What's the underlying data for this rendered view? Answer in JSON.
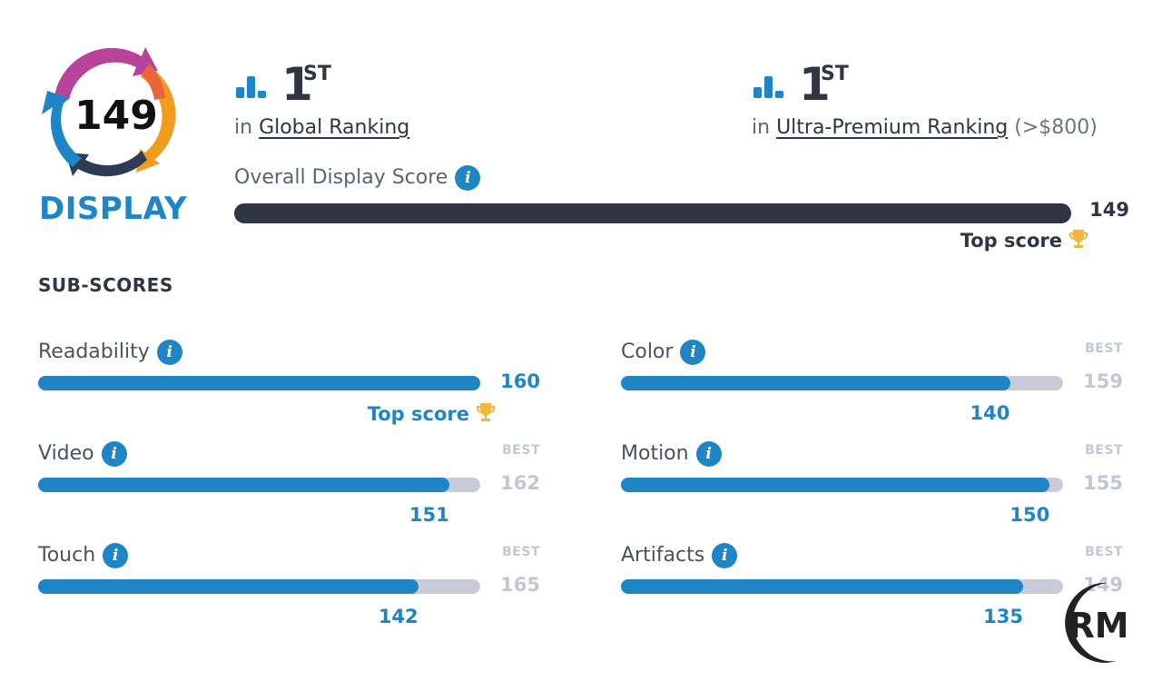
{
  "badge": {
    "score": "149",
    "label": "DISPLAY"
  },
  "rankings": [
    {
      "rank": "1",
      "suffix": "ST",
      "prefix": "in",
      "name": "Global Ranking",
      "extra": ""
    },
    {
      "rank": "1",
      "suffix": "ST",
      "prefix": "in",
      "name": "Ultra-Premium Ranking",
      "extra": "(>$800)"
    }
  ],
  "overall": {
    "label": "Overall Display Score",
    "value": "149",
    "max": 149,
    "top_score_label": "Top score"
  },
  "subscores_title": "SUB-SCORES",
  "subscores": [
    {
      "label": "Readability",
      "value": "160",
      "fill_pct": 100,
      "is_top": true,
      "top_score_label": "Top score",
      "best_label": "",
      "best": ""
    },
    {
      "label": "Color",
      "value": "140",
      "fill_pct": 88,
      "is_top": false,
      "best_label": "BEST",
      "best": "159"
    },
    {
      "label": "Video",
      "value": "151",
      "fill_pct": 93,
      "is_top": false,
      "best_label": "BEST",
      "best": "162"
    },
    {
      "label": "Motion",
      "value": "150",
      "fill_pct": 97,
      "is_top": false,
      "best_label": "BEST",
      "best": "155"
    },
    {
      "label": "Touch",
      "value": "142",
      "fill_pct": 86,
      "is_top": false,
      "best_label": "BEST",
      "best": "165"
    },
    {
      "label": "Artifacts",
      "value": "135",
      "fill_pct": 91,
      "is_top": false,
      "best_label": "BEST",
      "best": "149"
    }
  ],
  "watermark": {
    "text": "RM"
  },
  "colors": {
    "accent": "#1f86c6",
    "dark": "#2f3542",
    "track": "#c9cbd9",
    "best": "#c3c7d3",
    "trophy": "#f4b63a"
  }
}
